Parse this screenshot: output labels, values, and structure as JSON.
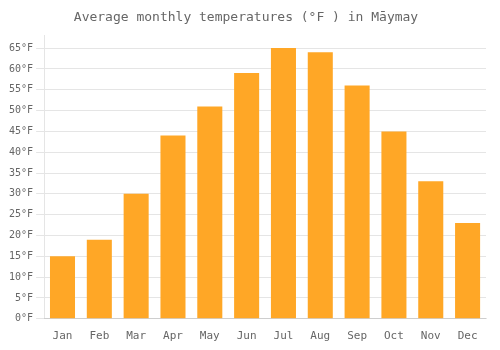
{
  "chart_data": {
    "type": "bar",
    "title": "Average monthly temperatures (°F ) in Māymay",
    "categories": [
      "Jan",
      "Feb",
      "Mar",
      "Apr",
      "May",
      "Jun",
      "Jul",
      "Aug",
      "Sep",
      "Oct",
      "Nov",
      "Dec"
    ],
    "values": [
      15,
      19,
      30,
      44,
      51,
      59,
      65,
      64,
      56,
      45,
      33,
      23
    ],
    "color": "#FFA726",
    "ylim": [
      0,
      68
    ],
    "yticks": [
      {
        "value": 0,
        "label": "0°F"
      },
      {
        "value": 5,
        "label": "5°F"
      },
      {
        "value": 10,
        "label": "10°F"
      },
      {
        "value": 15,
        "label": "15°F"
      },
      {
        "value": 20,
        "label": "20°F"
      },
      {
        "value": 25,
        "label": "25°F"
      },
      {
        "value": 30,
        "label": "30°F"
      },
      {
        "value": 35,
        "label": "35°F"
      },
      {
        "value": 40,
        "label": "40°F"
      },
      {
        "value": 45,
        "label": "45°F"
      },
      {
        "value": 50,
        "label": "50°F"
      },
      {
        "value": 55,
        "label": "55°F"
      },
      {
        "value": 60,
        "label": "60°F"
      },
      {
        "value": 65,
        "label": "65°F"
      }
    ],
    "grid": true
  }
}
